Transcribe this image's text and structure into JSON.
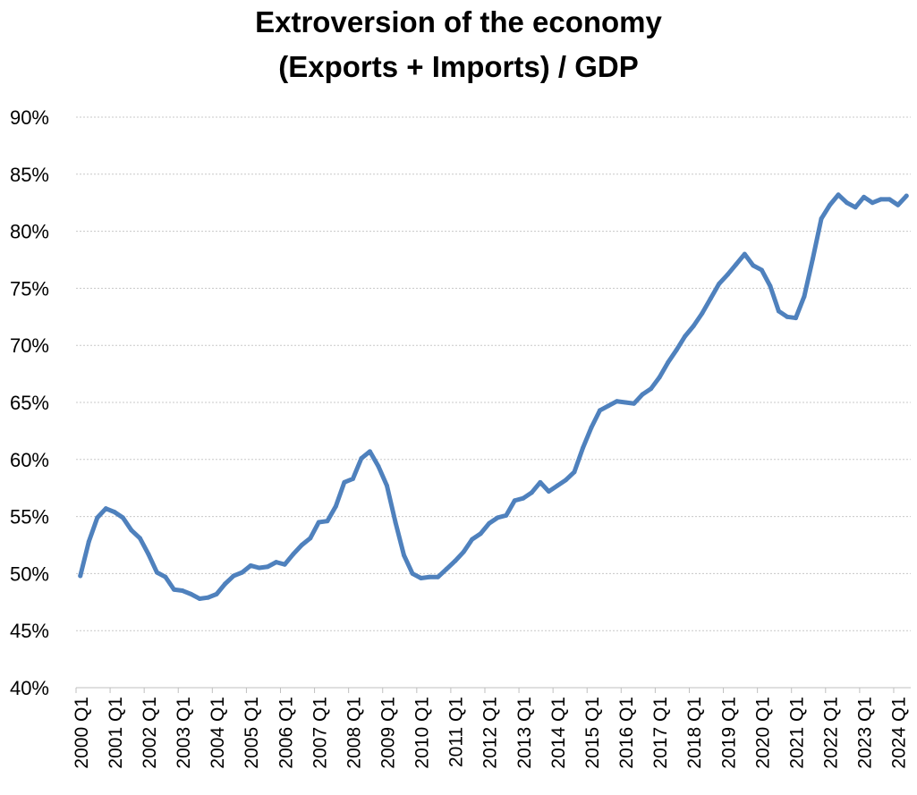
{
  "chart_data": {
    "type": "line",
    "title": "Extroversion of the economy",
    "subtitle": "(Exports + Imports) / GDP",
    "xlabel": "",
    "ylabel": "",
    "ylim": [
      40,
      90
    ],
    "y_unit": "%",
    "y_ticks": [
      "40%",
      "45%",
      "50%",
      "55%",
      "60%",
      "65%",
      "70%",
      "75%",
      "80%",
      "85%",
      "90%"
    ],
    "x_ticks": [
      "2000 Q1",
      "2001 Q1",
      "2002 Q1",
      "2003 Q1",
      "2004 Q1",
      "2005 Q1",
      "2006 Q1",
      "2007 Q1",
      "2008 Q1",
      "2009 Q1",
      "2010 Q1",
      "2011 Q1",
      "2012 Q1",
      "2013 Q1",
      "2014 Q1",
      "2015 Q1",
      "2016 Q1",
      "2017 Q1",
      "2018 Q1",
      "2019 Q1",
      "2020 Q1",
      "2021 Q1",
      "2022 Q1",
      "2023 Q1",
      "2024 Q1"
    ],
    "grid": true,
    "line_color": "#4F81BD",
    "series": [
      {
        "values": [
          49.8,
          52.8,
          54.9,
          55.7,
          55.4,
          54.9,
          53.8,
          53.1,
          51.7,
          50.1,
          49.7,
          48.6,
          48.5,
          48.2,
          47.8,
          47.9,
          48.2,
          49.1,
          49.8,
          50.1,
          50.7,
          50.5,
          50.6,
          51.0,
          50.8,
          51.7,
          52.5,
          53.1,
          54.5,
          54.6,
          55.9,
          58.0,
          58.3,
          60.1,
          60.7,
          59.4,
          57.7,
          54.5,
          51.6,
          50.0,
          49.6,
          49.7,
          49.7,
          50.4,
          51.1,
          51.9,
          53.0,
          53.5,
          54.4,
          54.9,
          55.1,
          56.4,
          56.6,
          57.1,
          58.0,
          57.2,
          57.7,
          58.2,
          58.9,
          61.0,
          62.8,
          64.3,
          64.7,
          65.1,
          65.0,
          64.9,
          65.7,
          66.2,
          67.2,
          68.5,
          69.6,
          70.8,
          71.7,
          72.8,
          74.1,
          75.4,
          76.2,
          77.1,
          78.0,
          77.0,
          76.6,
          75.2,
          73.0,
          72.5,
          72.4,
          74.3,
          77.6,
          81.1,
          82.3,
          83.2,
          82.5,
          82.1,
          83.0,
          82.5,
          82.8,
          82.8,
          82.3,
          83.1
        ]
      }
    ]
  }
}
